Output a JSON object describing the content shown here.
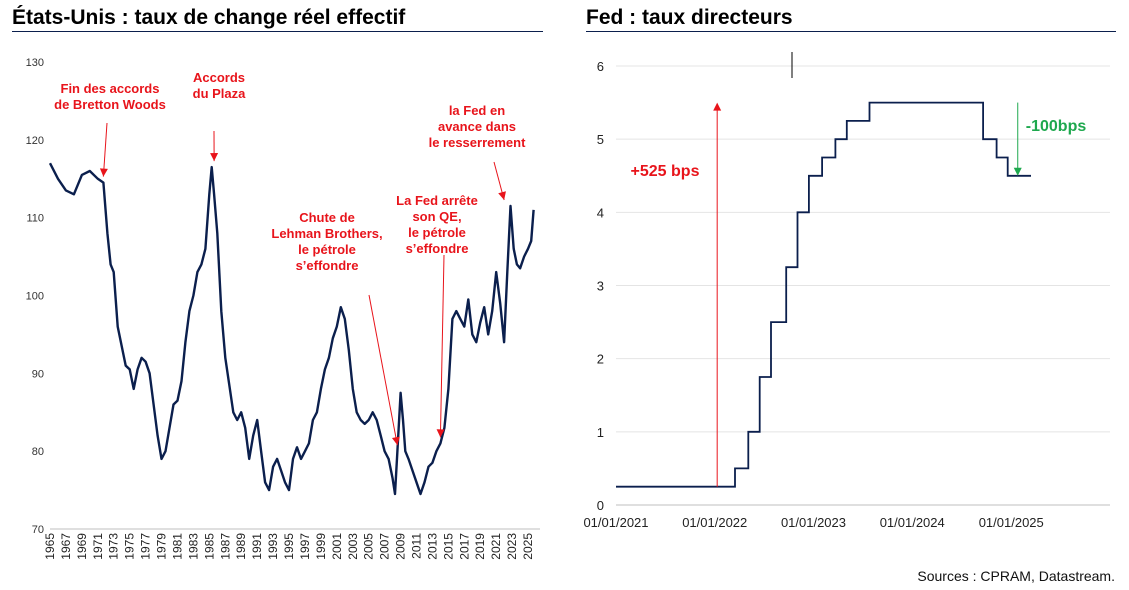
{
  "left_chart": {
    "title": "États-Unis : taux de change réel effectif",
    "type": "line",
    "ylim": [
      70,
      130
    ],
    "yticks": [
      70,
      80,
      90,
      100,
      110,
      120,
      130
    ],
    "xlim": [
      1965,
      2026.5
    ],
    "xticks": [
      "1965",
      "1967",
      "1969",
      "1971",
      "1973",
      "1975",
      "1977",
      "1979",
      "1981",
      "1983",
      "1985",
      "1987",
      "1989",
      "1991",
      "1993",
      "1995",
      "1997",
      "1999",
      "2001",
      "2003",
      "2005",
      "2007",
      "2009",
      "2011",
      "2013",
      "2015",
      "2017",
      "2019",
      "2021",
      "2023",
      "2025"
    ],
    "line_color": "#0b1f4d",
    "series": [
      {
        "x": [
          1965.0,
          1966.0,
          1967.0,
          1968.0,
          1969.0,
          1970.0,
          1971.0,
          1971.7,
          1972.2,
          1972.6,
          1973.0,
          1973.5,
          1974.0,
          1974.5,
          1975.0,
          1975.5,
          1976.0,
          1976.5,
          1977.0,
          1977.5,
          1978.0,
          1978.5,
          1979.0,
          1979.5,
          1980.0,
          1980.5,
          1981.0,
          1981.5,
          1982.0,
          1982.5,
          1983.0,
          1983.5,
          1984.0,
          1984.5,
          1985.0,
          1985.3,
          1985.6,
          1986.0,
          1986.5,
          1987.0,
          1987.5,
          1988.0,
          1988.5,
          1989.0,
          1989.5,
          1990.0,
          1990.5,
          1991.0,
          1991.5,
          1992.0,
          1992.5,
          1993.0,
          1993.5,
          1994.0,
          1994.5,
          1995.0,
          1995.5,
          1996.0,
          1996.5,
          1997.0,
          1997.5,
          1998.0,
          1998.5,
          1999.0,
          1999.5,
          2000.0,
          2000.5,
          2001.0,
          2001.5,
          2002.0,
          2002.5,
          2003.0,
          2003.5,
          2004.0,
          2004.5,
          2005.0,
          2005.5,
          2006.0,
          2006.5,
          2007.0,
          2007.5,
          2008.0,
          2008.3,
          2008.6,
          2009.0,
          2009.3,
          2009.6,
          2010.0,
          2010.5,
          2011.0,
          2011.5,
          2012.0,
          2012.5,
          2013.0,
          2013.5,
          2014.0,
          2014.5,
          2015.0,
          2015.5,
          2016.0,
          2016.5,
          2017.0,
          2017.5,
          2018.0,
          2018.5,
          2019.0,
          2019.5,
          2020.0,
          2020.5,
          2021.0,
          2021.5,
          2022.0,
          2022.4,
          2022.8,
          2023.2,
          2023.6,
          2024.0,
          2024.5,
          2025.0,
          2025.4,
          2025.7
        ],
        "y": [
          117.0,
          115.0,
          113.5,
          113.0,
          115.5,
          116.0,
          115.0,
          114.5,
          108.0,
          104.0,
          103.0,
          96.0,
          93.5,
          91.0,
          90.5,
          88.0,
          90.5,
          92.0,
          91.5,
          90.0,
          86.0,
          82.0,
          79.0,
          80.0,
          83.0,
          86.0,
          86.5,
          89.0,
          94.0,
          98.0,
          100.0,
          103.0,
          104.0,
          106.0,
          113.0,
          116.5,
          113.0,
          108.0,
          98.0,
          92.0,
          88.5,
          85.0,
          84.0,
          85.0,
          83.0,
          79.0,
          82.0,
          84.0,
          80.0,
          76.0,
          75.0,
          78.0,
          79.0,
          77.5,
          76.0,
          75.0,
          79.0,
          80.5,
          79.0,
          80.0,
          81.0,
          84.0,
          85.0,
          88.0,
          90.5,
          92.0,
          94.5,
          96.0,
          98.5,
          97.0,
          93.0,
          88.0,
          85.0,
          84.0,
          83.5,
          84.0,
          85.0,
          84.0,
          82.0,
          80.0,
          79.0,
          76.5,
          74.5,
          80.0,
          87.5,
          84.0,
          80.0,
          79.0,
          77.5,
          76.0,
          74.5,
          76.0,
          78.0,
          78.5,
          80.0,
          81.0,
          83.0,
          88.0,
          97.0,
          98.0,
          97.0,
          96.0,
          99.5,
          95.0,
          94.0,
          96.5,
          98.5,
          95.0,
          98.0,
          103.0,
          99.0,
          94.0,
          103.0,
          111.5,
          106.0,
          104.0,
          103.5,
          105.0,
          106.0,
          107.0,
          111.0
        ]
      }
    ],
    "annotations": [
      {
        "text": [
          "Fin des accords",
          "de Bretton Woods"
        ],
        "x": 1971.7,
        "y": 114.5
      },
      {
        "text": [
          "Accords",
          "du Plaza"
        ],
        "x": 1985.6,
        "y": 116.5
      },
      {
        "text": [
          "Chute de",
          "Lehman Brothers,",
          "le pétrole",
          "s’effondre"
        ],
        "x": 2008.6,
        "y": 80.0
      },
      {
        "text": [
          "La Fed arrête",
          "son QE,",
          "le pétrole",
          "s’effondre"
        ],
        "x": 2014.0,
        "y": 81.0
      },
      {
        "text": [
          "la Fed en",
          "avance dans",
          "le resserrement"
        ],
        "x": 2022.0,
        "y": 111.5
      }
    ],
    "annotation_color": "#e8141b"
  },
  "right_chart": {
    "title": "Fed : taux directeurs",
    "type": "line",
    "ylim": [
      0,
      6
    ],
    "yticks": [
      0,
      1,
      2,
      3,
      4,
      5,
      6
    ],
    "xlim": [
      "2021-01-01",
      "2026-01-01"
    ],
    "xticks": [
      "01/01/2021",
      "01/01/2022",
      "01/01/2023",
      "01/01/2024",
      "01/01/2025"
    ],
    "line_color": "#0b1f4d",
    "series": [
      {
        "x": [
          "2021-01-01",
          "2022-03-17",
          "2022-03-17",
          "2022-05-05",
          "2022-05-05",
          "2022-06-16",
          "2022-06-16",
          "2022-07-28",
          "2022-07-28",
          "2022-09-22",
          "2022-09-22",
          "2022-11-03",
          "2022-11-03",
          "2022-12-15",
          "2022-12-15",
          "2023-02-02",
          "2023-02-02",
          "2023-03-23",
          "2023-03-23",
          "2023-05-04",
          "2023-05-04",
          "2023-07-27",
          "2023-07-27",
          "2024-09-19",
          "2024-09-19",
          "2024-11-08",
          "2024-11-08",
          "2024-12-19",
          "2024-12-19",
          "2025-03-15"
        ],
        "y": [
          0.25,
          0.25,
          0.5,
          0.5,
          1.0,
          1.0,
          1.75,
          1.75,
          2.5,
          2.5,
          3.25,
          3.25,
          4.0,
          4.0,
          4.5,
          4.5,
          4.75,
          4.75,
          5.0,
          5.0,
          5.25,
          5.25,
          5.5,
          5.5,
          5.0,
          5.0,
          4.75,
          4.75,
          4.5,
          4.5
        ]
      }
    ],
    "annotations": [
      {
        "text": "+525 bps",
        "color": "#e8141b"
      },
      {
        "text": "-100bps",
        "color": "#1ea84e"
      }
    ],
    "arrow_up": {
      "x": "2022-01-10",
      "y_from": 0.25,
      "y_to": 5.5
    },
    "arrow_down": {
      "x": "2025-01-25",
      "y_from": 5.5,
      "y_to": 4.5
    }
  },
  "sources": "Sources : CPRAM, Datastream."
}
